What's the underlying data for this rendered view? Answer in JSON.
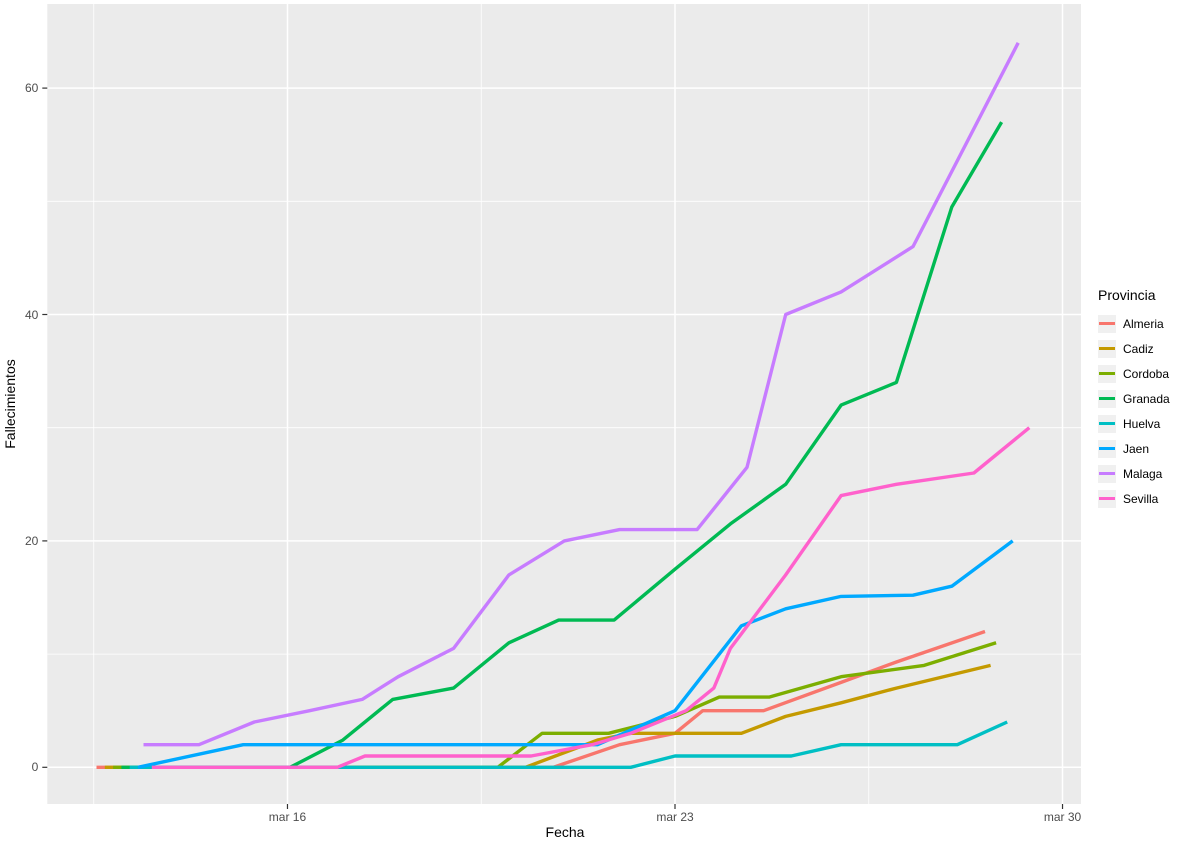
{
  "chart_data": {
    "type": "line",
    "title": "",
    "xlabel": "Fecha",
    "ylabel": "Fallecimientos",
    "legend_title": "Provincia",
    "legend_position": "right",
    "grid": true,
    "x_unit": "day of March",
    "xlim_days": [
      11.66,
      30.33
    ],
    "ylim": [
      -3.2,
      67.4
    ],
    "x_major_ticks": [
      {
        "day": 16,
        "label": "mar 16"
      },
      {
        "day": 23,
        "label": "mar 23"
      },
      {
        "day": 30,
        "label": "mar 30"
      }
    ],
    "x_minor_days": [
      12.5,
      19.5,
      26.5
    ],
    "y_major_ticks": [
      0,
      20,
      40,
      60
    ],
    "y_minor_ticks": [
      10,
      30,
      50
    ],
    "panel_bg": "#ebebeb",
    "grid_color": "#ffffff",
    "series": [
      {
        "name": "Almeria",
        "color": "#F8766D",
        "points": [
          [
            12.55,
            0
          ],
          [
            20.8,
            0
          ],
          [
            22,
            2
          ],
          [
            23,
            3
          ],
          [
            23.5,
            5
          ],
          [
            24.6,
            5
          ],
          [
            26,
            7.5
          ],
          [
            27,
            9.3
          ],
          [
            28.6,
            12
          ]
        ]
      },
      {
        "name": "Cadiz",
        "color": "#C49A00",
        "points": [
          [
            12.7,
            0
          ],
          [
            20.3,
            0
          ],
          [
            21.6,
            2.4
          ],
          [
            22.2,
            3
          ],
          [
            24.2,
            3
          ],
          [
            25,
            4.5
          ],
          [
            26,
            5.7
          ],
          [
            27,
            7
          ],
          [
            28.7,
            9
          ]
        ]
      },
      {
        "name": "Cordoba",
        "color": "#7CAE00",
        "points": [
          [
            12.85,
            0
          ],
          [
            19.8,
            0
          ],
          [
            20.6,
            3
          ],
          [
            21.8,
            3
          ],
          [
            23,
            4.5
          ],
          [
            23.8,
            6.2
          ],
          [
            24.7,
            6.2
          ],
          [
            26,
            8
          ],
          [
            27.5,
            9
          ],
          [
            28.8,
            11
          ]
        ]
      },
      {
        "name": "Granada",
        "color": "#00BA53",
        "points": [
          [
            13.0,
            0
          ],
          [
            16.05,
            0
          ],
          [
            17,
            2.4
          ],
          [
            17.9,
            6
          ],
          [
            19,
            7
          ],
          [
            20,
            11
          ],
          [
            20.9,
            13
          ],
          [
            21.9,
            13
          ],
          [
            23,
            17.5
          ],
          [
            24,
            21.5
          ],
          [
            25,
            25
          ],
          [
            26,
            32
          ],
          [
            27,
            34
          ],
          [
            28,
            49.5
          ],
          [
            28.9,
            57
          ]
        ]
      },
      {
        "name": "Huelva",
        "color": "#00BFC4",
        "points": [
          [
            13.15,
            0
          ],
          [
            22.2,
            0
          ],
          [
            23,
            1
          ],
          [
            25.1,
            1
          ],
          [
            26,
            2
          ],
          [
            28.1,
            2
          ],
          [
            29,
            4
          ]
        ]
      },
      {
        "name": "Jaen",
        "color": "#00A9FF",
        "points": [
          [
            13.3,
            0
          ],
          [
            15.2,
            2
          ],
          [
            21.6,
            2
          ],
          [
            22.3,
            3.5
          ],
          [
            23,
            5
          ],
          [
            24.2,
            12.5
          ],
          [
            25,
            14
          ],
          [
            26,
            15.1
          ],
          [
            27.3,
            15.2
          ],
          [
            28,
            16
          ],
          [
            29.1,
            20
          ]
        ]
      },
      {
        "name": "Malaga",
        "color": "#C77CFF",
        "points": [
          [
            13.4,
            2
          ],
          [
            14.4,
            2
          ],
          [
            15.4,
            4
          ],
          [
            16.4,
            5
          ],
          [
            17.35,
            6
          ],
          [
            18,
            8
          ],
          [
            19,
            10.5
          ],
          [
            20,
            17
          ],
          [
            21,
            20
          ],
          [
            22,
            21
          ],
          [
            23.4,
            21
          ],
          [
            24.3,
            26.5
          ],
          [
            25,
            40
          ],
          [
            26,
            42
          ],
          [
            27.3,
            46
          ],
          [
            29.2,
            64
          ]
        ]
      },
      {
        "name": "Sevilla",
        "color": "#FF61CC",
        "points": [
          [
            13.55,
            0
          ],
          [
            16.9,
            0
          ],
          [
            17.4,
            1
          ],
          [
            20.4,
            1
          ],
          [
            21.5,
            2
          ],
          [
            22.2,
            3
          ],
          [
            23.2,
            5
          ],
          [
            23.7,
            7
          ],
          [
            24,
            10.5
          ],
          [
            25,
            17
          ],
          [
            26,
            24
          ],
          [
            27,
            25
          ],
          [
            28.4,
            26
          ],
          [
            29.4,
            30
          ]
        ]
      }
    ]
  },
  "axes": {
    "x_label": "Fecha",
    "y_label": "Fallecimientos"
  },
  "legend": {
    "title": "Provincia",
    "items": [
      {
        "label": "Almeria",
        "color": "#F8766D"
      },
      {
        "label": "Cadiz",
        "color": "#C49A00"
      },
      {
        "label": "Cordoba",
        "color": "#7CAE00"
      },
      {
        "label": "Granada",
        "color": "#00BA53"
      },
      {
        "label": "Huelva",
        "color": "#00BFC4"
      },
      {
        "label": "Jaen",
        "color": "#00A9FF"
      },
      {
        "label": "Malaga",
        "color": "#C77CFF"
      },
      {
        "label": "Sevilla",
        "color": "#FF61CC"
      }
    ]
  }
}
